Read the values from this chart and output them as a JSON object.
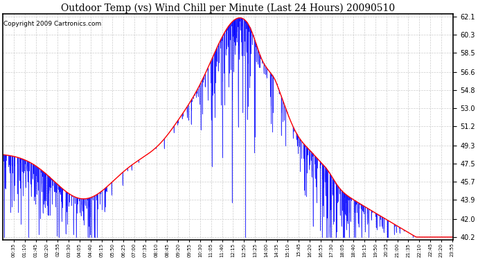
{
  "title": "Outdoor Temp (vs) Wind Chill per Minute (Last 24 Hours) 20090510",
  "copyright": "Copyright 2009 Cartronics.com",
  "y_min": 40.2,
  "y_max": 62.1,
  "yticks": [
    62.1,
    60.3,
    58.5,
    56.6,
    54.8,
    53.0,
    51.2,
    49.3,
    47.5,
    45.7,
    43.9,
    42.0,
    40.2
  ],
  "red_color": "#ff0000",
  "blue_color": "#0000ff",
  "bg_color": "#ffffff",
  "grid_color": "#c0c0c0",
  "title_fontsize": 10,
  "copyright_fontsize": 6.5
}
